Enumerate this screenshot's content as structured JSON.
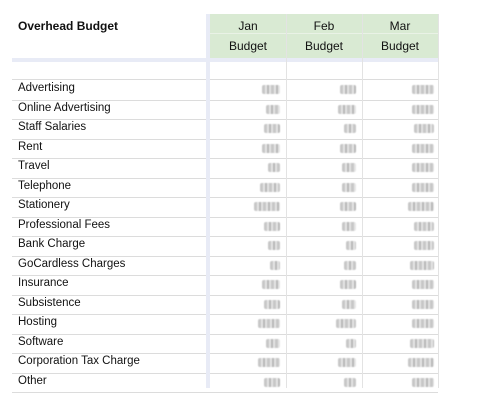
{
  "sheet": {
    "title": "Overhead Budget",
    "months": [
      {
        "month": "Jan",
        "sub": "Budget"
      },
      {
        "month": "Feb",
        "sub": "Budget"
      },
      {
        "month": "Mar",
        "sub": "Budget"
      }
    ],
    "rows": [
      {
        "label": "Advertising"
      },
      {
        "label": "Online Advertising"
      },
      {
        "label": "Staff Salaries"
      },
      {
        "label": "Rent"
      },
      {
        "label": "Travel"
      },
      {
        "label": "Telephone"
      },
      {
        "label": "Stationery"
      },
      {
        "label": "Professional Fees"
      },
      {
        "label": "Bank Charge"
      },
      {
        "label": "GoCardless Charges"
      },
      {
        "label": "Insurance"
      },
      {
        "label": "Subsistence"
      },
      {
        "label": "Hosting"
      },
      {
        "label": "Software"
      },
      {
        "label": "Corporation Tax Charge"
      },
      {
        "label": "Other"
      }
    ]
  }
}
